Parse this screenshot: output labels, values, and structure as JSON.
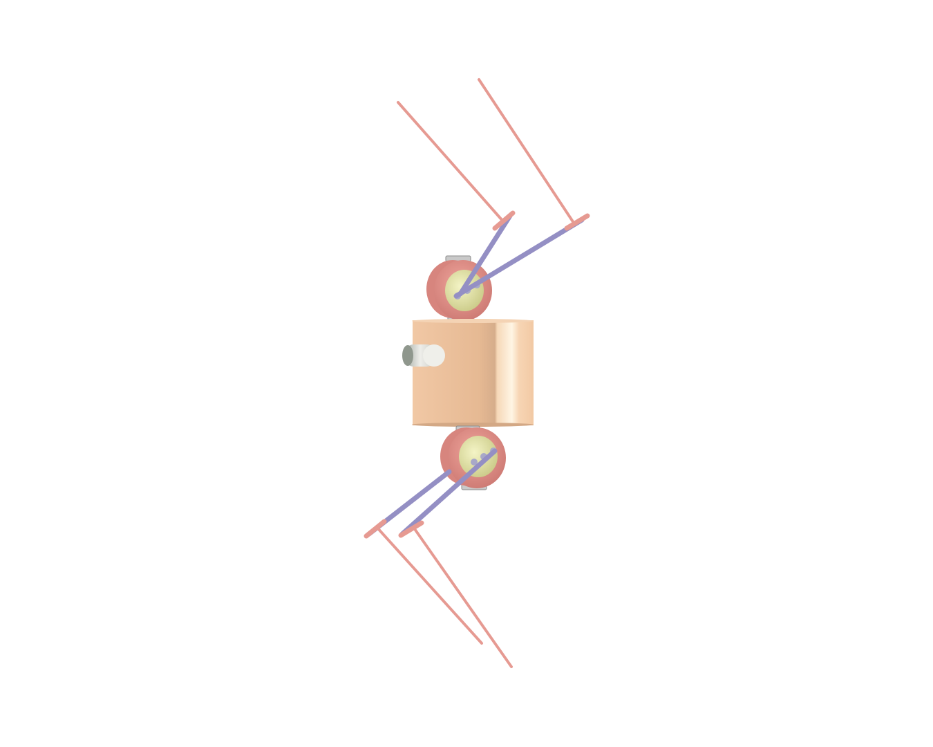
{
  "scene": {
    "background": "#ffffff",
    "subject": "robot-quadruped-render",
    "colors": {
      "body": "#f2c9a4",
      "body_highlight": "#fdf0dc",
      "body_shadow": "#d9b08c",
      "hip_ring": "#e0908a",
      "hip_disc": "#e6e6a6",
      "upper_leg": "#9d97c8",
      "lower_leg": "#e69a92",
      "sensor": "#d8d8d0",
      "bracket": "#c8c8c8"
    },
    "legs_count": 4,
    "joints_count": 2
  }
}
